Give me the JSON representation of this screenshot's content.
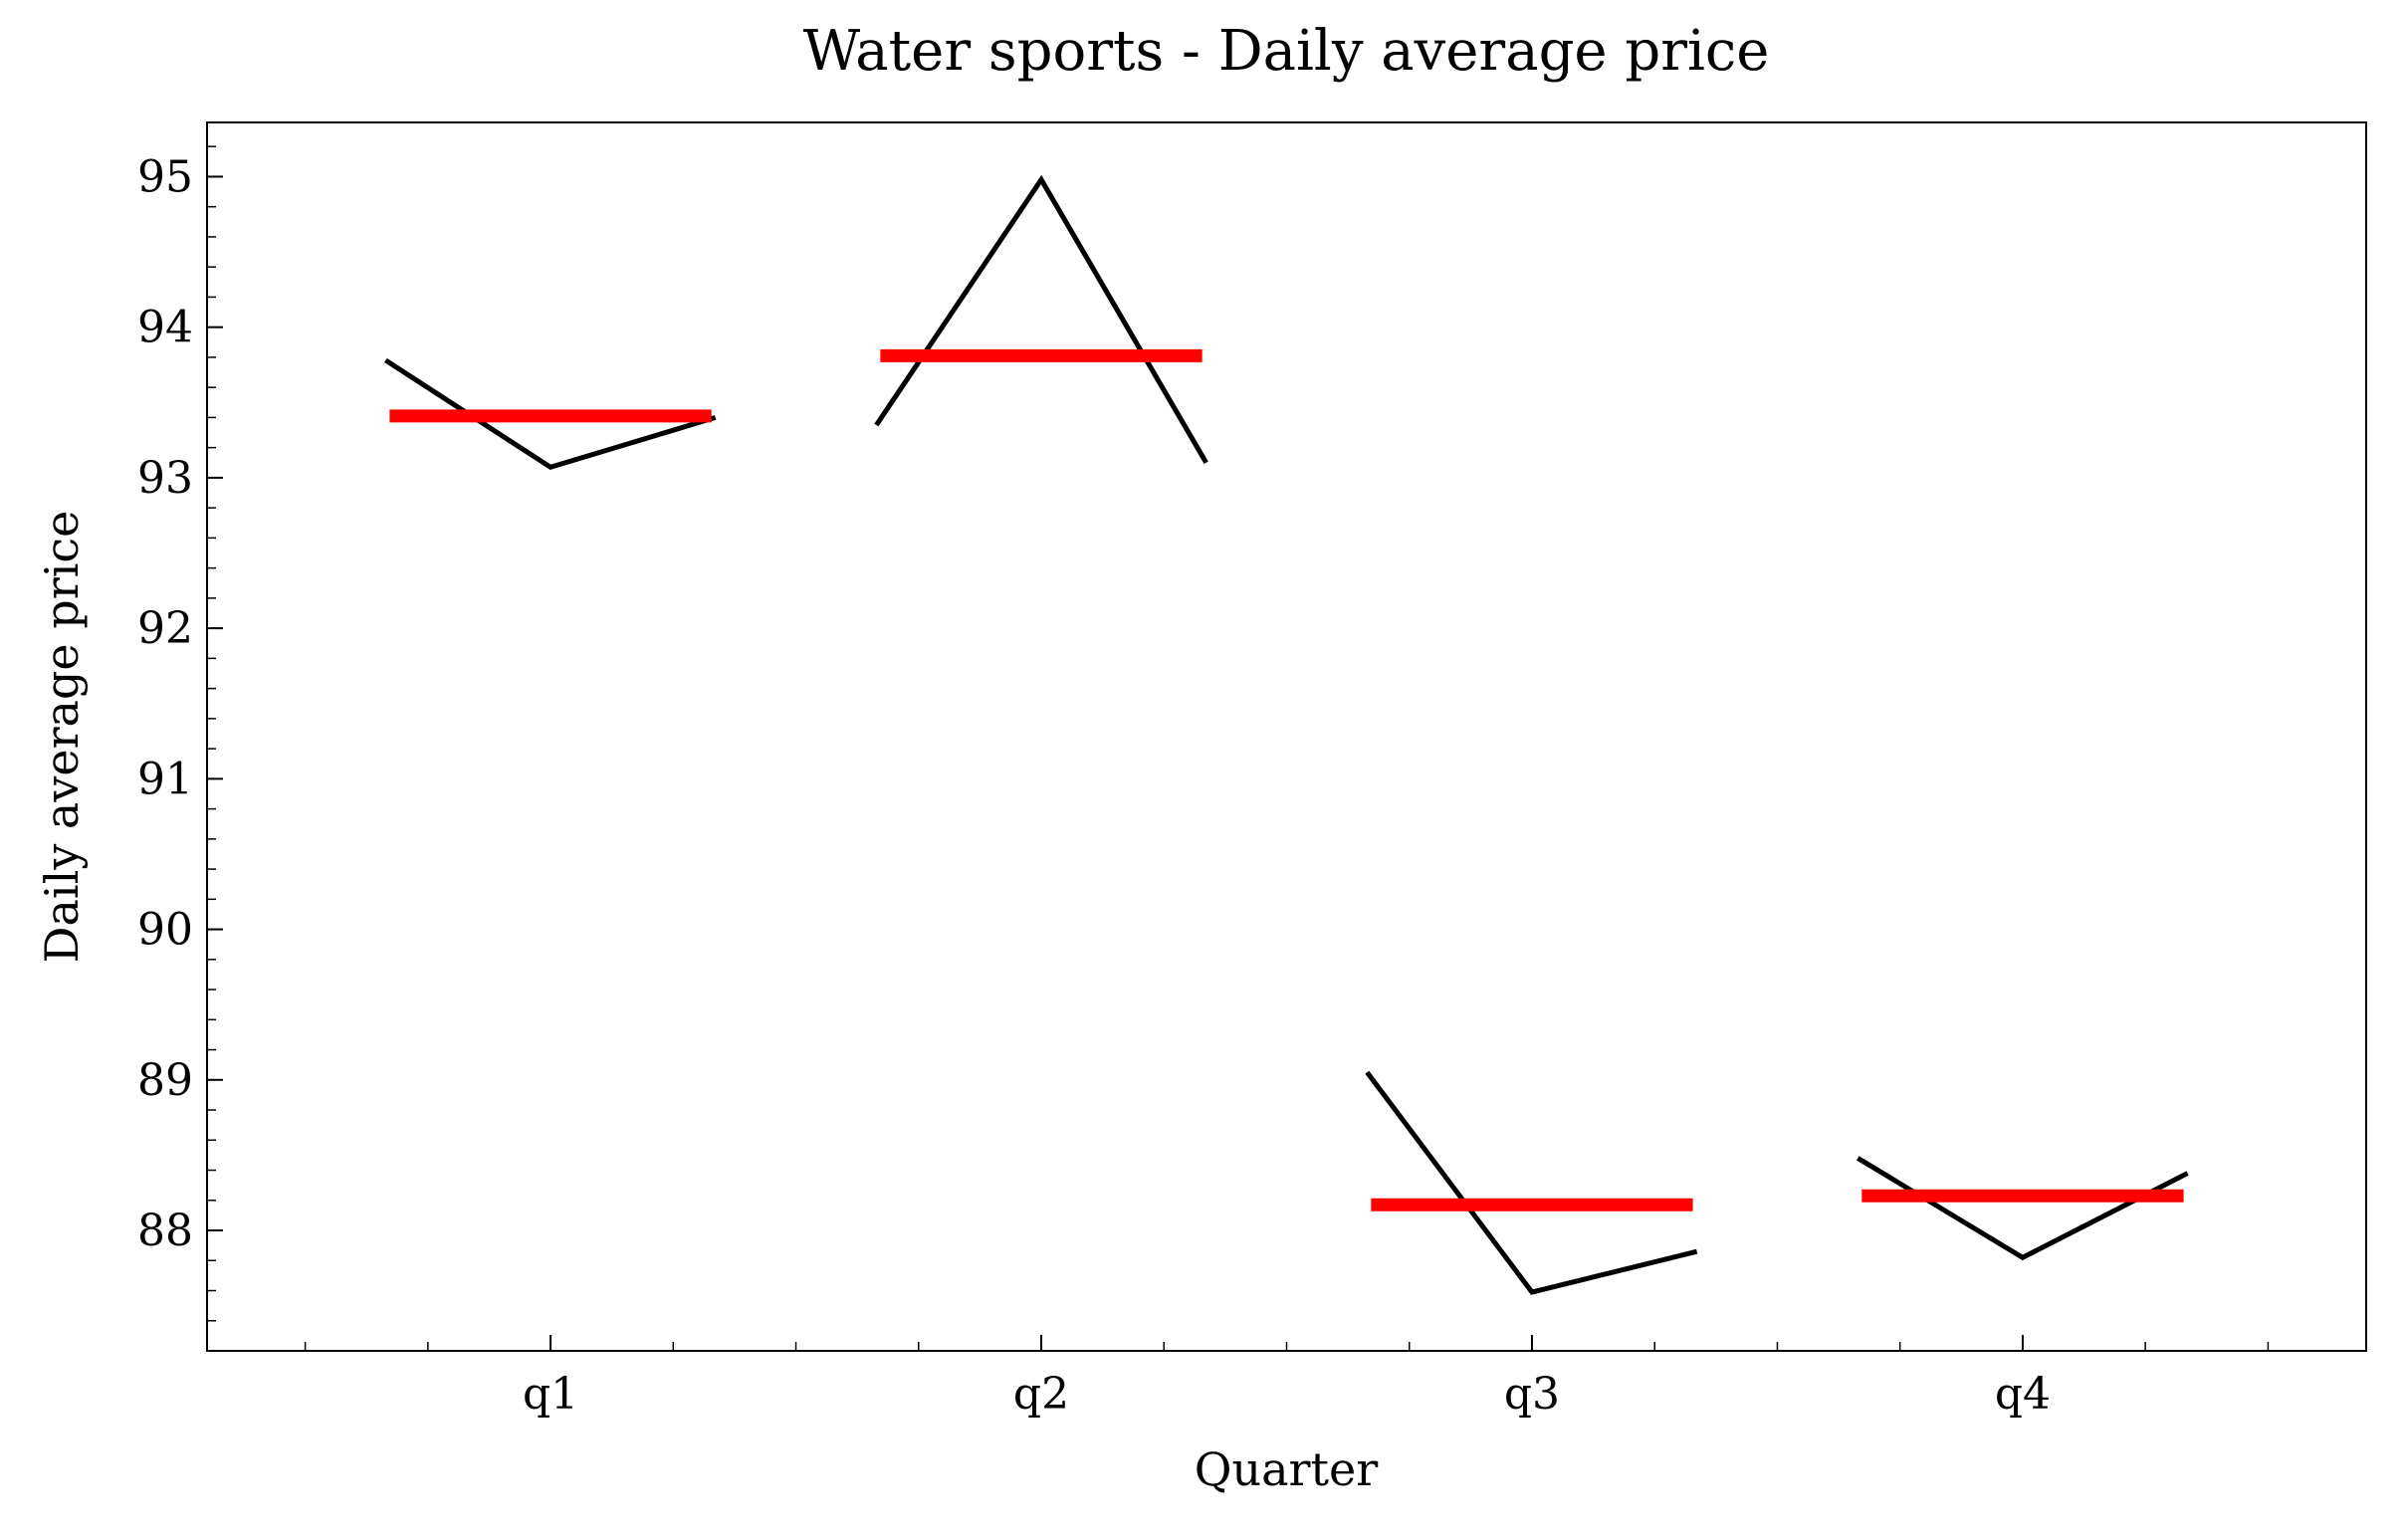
{
  "chart_data": {
    "type": "quarter",
    "title": "Water sports - Daily average price",
    "xlabel": "Quarter",
    "ylabel": "Daily average price",
    "categories": [
      "q1",
      "q2",
      "q3",
      "q4"
    ],
    "values": [
      [
        93.78,
        93.07,
        93.4
      ],
      [
        93.35,
        94.98,
        93.1
      ],
      [
        89.05,
        87.59,
        87.86
      ],
      [
        88.48,
        87.82,
        88.38
      ]
    ],
    "means": [
      93.41,
      93.81,
      88.17,
      88.23
    ],
    "line_color": "#000000",
    "mean_color": "#ff0000",
    "ylim": [
      87.2,
      95.36
    ],
    "yticks": [
      88,
      89,
      90,
      91,
      92,
      93,
      94,
      95
    ],
    "minor_ticks": true,
    "grid": false
  }
}
